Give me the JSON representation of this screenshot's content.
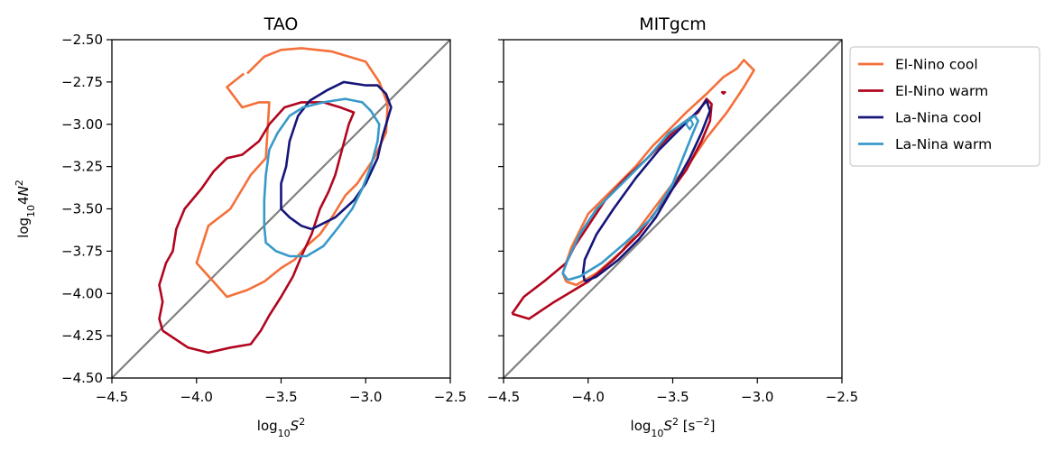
{
  "chart_data": [
    {
      "type": "line",
      "title": "TAO",
      "xlabel": "log10S2",
      "ylabel": "log10 4N2",
      "xlim": [
        -4.5,
        -2.5
      ],
      "ylim": [
        -4.5,
        -2.5
      ],
      "x_ticks": [
        -4.5,
        -4.0,
        -3.5,
        -3.0,
        -2.5
      ],
      "y_ticks": [
        -4.5,
        -4.25,
        -4.0,
        -3.75,
        -3.5,
        -3.25,
        -3.0,
        -2.75,
        -2.5
      ],
      "x_tick_labels": [
        "−4.5",
        "−4.0",
        "−3.5",
        "−3.0",
        "−2.5"
      ],
      "y_tick_labels": [
        "−4.50",
        "−4.25",
        "−4.00",
        "−3.75",
        "−3.50",
        "−3.25",
        "−3.00",
        "−2.75",
        "−2.50"
      ],
      "reference_line": {
        "color": "#808080",
        "points": [
          [
            -4.5,
            -4.5
          ],
          [
            -2.5,
            -2.5
          ]
        ]
      },
      "series": [
        {
          "name": "El-Nino cool",
          "color": "#f4703a",
          "points": [
            [
              -3.7,
              -2.7
            ],
            [
              -3.6,
              -2.6
            ],
            [
              -3.5,
              -2.56
            ],
            [
              -3.38,
              -2.55
            ],
            [
              -3.2,
              -2.57
            ],
            [
              -3.0,
              -2.63
            ],
            [
              -2.92,
              -2.75
            ],
            [
              -2.87,
              -2.88
            ],
            [
              -2.88,
              -3.05
            ],
            [
              -2.95,
              -3.2
            ],
            [
              -3.05,
              -3.35
            ],
            [
              -3.12,
              -3.42
            ],
            [
              -3.2,
              -3.55
            ],
            [
              -3.27,
              -3.65
            ],
            [
              -3.35,
              -3.72
            ],
            [
              -3.42,
              -3.8
            ],
            [
              -3.5,
              -3.85
            ],
            [
              -3.6,
              -3.93
            ],
            [
              -3.7,
              -3.98
            ],
            [
              -3.82,
              -4.02
            ],
            [
              -3.9,
              -3.93
            ],
            [
              -4.0,
              -3.82
            ],
            [
              -3.93,
              -3.6
            ],
            [
              -3.8,
              -3.5
            ],
            [
              -3.68,
              -3.3
            ],
            [
              -3.59,
              -3.2
            ],
            [
              -3.57,
              -2.87
            ],
            [
              -3.63,
              -2.87
            ],
            [
              -3.73,
              -2.9
            ],
            [
              -3.82,
              -2.78
            ],
            [
              -3.72,
              -2.7
            ]
          ]
        },
        {
          "name": "El-Nino warm",
          "color": "#b0061f",
          "points": [
            [
              -4.2,
              -4.22
            ],
            [
              -4.05,
              -4.32
            ],
            [
              -3.93,
              -4.35
            ],
            [
              -3.8,
              -4.32
            ],
            [
              -3.68,
              -4.3
            ],
            [
              -3.62,
              -4.22
            ],
            [
              -3.57,
              -4.13
            ],
            [
              -3.5,
              -4.02
            ],
            [
              -3.43,
              -3.9
            ],
            [
              -3.38,
              -3.78
            ],
            [
              -3.32,
              -3.65
            ],
            [
              -3.27,
              -3.5
            ],
            [
              -3.22,
              -3.4
            ],
            [
              -3.18,
              -3.3
            ],
            [
              -3.14,
              -3.15
            ],
            [
              -3.1,
              -3.0
            ],
            [
              -3.07,
              -2.93
            ],
            [
              -3.15,
              -2.9
            ],
            [
              -3.25,
              -2.87
            ],
            [
              -3.38,
              -2.87
            ],
            [
              -3.48,
              -2.9
            ],
            [
              -3.57,
              -3.0
            ],
            [
              -3.63,
              -3.1
            ],
            [
              -3.73,
              -3.18
            ],
            [
              -3.82,
              -3.2
            ],
            [
              -3.9,
              -3.28
            ],
            [
              -3.97,
              -3.38
            ],
            [
              -4.07,
              -3.5
            ],
            [
              -4.12,
              -3.62
            ],
            [
              -4.14,
              -3.75
            ],
            [
              -4.18,
              -3.82
            ],
            [
              -4.22,
              -3.95
            ],
            [
              -4.2,
              -4.05
            ],
            [
              -4.22,
              -4.15
            ],
            [
              -4.2,
              -4.22
            ]
          ]
        },
        {
          "name": "La-Nina cool",
          "color": "#15157a",
          "points": [
            [
              -3.32,
              -3.62
            ],
            [
              -3.18,
              -3.55
            ],
            [
              -3.07,
              -3.45
            ],
            [
              -3.0,
              -3.35
            ],
            [
              -2.93,
              -3.2
            ],
            [
              -2.9,
              -3.07
            ],
            [
              -2.85,
              -2.9
            ],
            [
              -2.88,
              -2.82
            ],
            [
              -2.93,
              -2.77
            ],
            [
              -3.0,
              -2.77
            ],
            [
              -3.13,
              -2.75
            ],
            [
              -3.23,
              -2.8
            ],
            [
              -3.33,
              -2.86
            ],
            [
              -3.4,
              -2.95
            ],
            [
              -3.45,
              -3.1
            ],
            [
              -3.47,
              -3.25
            ],
            [
              -3.5,
              -3.35
            ],
            [
              -3.5,
              -3.5
            ],
            [
              -3.45,
              -3.55
            ],
            [
              -3.38,
              -3.6
            ],
            [
              -3.32,
              -3.62
            ]
          ]
        },
        {
          "name": "La-Nina warm",
          "color": "#3899c9",
          "points": [
            [
              -3.45,
              -3.78
            ],
            [
              -3.35,
              -3.78
            ],
            [
              -3.25,
              -3.72
            ],
            [
              -3.17,
              -3.62
            ],
            [
              -3.08,
              -3.5
            ],
            [
              -3.02,
              -3.38
            ],
            [
              -2.97,
              -3.25
            ],
            [
              -2.93,
              -3.1
            ],
            [
              -2.92,
              -3.0
            ],
            [
              -2.97,
              -2.92
            ],
            [
              -3.02,
              -2.87
            ],
            [
              -3.12,
              -2.85
            ],
            [
              -3.25,
              -2.87
            ],
            [
              -3.37,
              -2.9
            ],
            [
              -3.45,
              -2.95
            ],
            [
              -3.52,
              -3.05
            ],
            [
              -3.57,
              -3.15
            ],
            [
              -3.59,
              -3.3
            ],
            [
              -3.6,
              -3.45
            ],
            [
              -3.6,
              -3.6
            ],
            [
              -3.59,
              -3.7
            ],
            [
              -3.53,
              -3.75
            ],
            [
              -3.45,
              -3.78
            ]
          ]
        }
      ]
    },
    {
      "type": "line",
      "title": "MITgcm",
      "xlabel": "log10S2 [s−2]",
      "ylabel": "",
      "xlim": [
        -4.5,
        -2.5
      ],
      "ylim": [
        -4.5,
        -2.5
      ],
      "x_ticks": [
        -4.5,
        -4.0,
        -3.5,
        -3.0,
        -2.5
      ],
      "y_ticks": [
        -4.5,
        -4.25,
        -4.0,
        -3.75,
        -3.5,
        -3.25,
        -3.0,
        -2.75,
        -2.5
      ],
      "x_tick_labels": [
        "−4.5",
        "−4.0",
        "−3.5",
        "−3.0",
        "−2.5"
      ],
      "y_tick_labels": [],
      "reference_line": {
        "color": "#808080",
        "points": [
          [
            -4.5,
            -4.5
          ],
          [
            -2.5,
            -2.5
          ]
        ]
      },
      "series": [
        {
          "name": "El-Nino cool",
          "color": "#f4703a",
          "points": [
            [
              -4.13,
              -3.93
            ],
            [
              -4.07,
              -3.95
            ],
            [
              -3.95,
              -3.88
            ],
            [
              -3.8,
              -3.75
            ],
            [
              -3.65,
              -3.55
            ],
            [
              -3.5,
              -3.35
            ],
            [
              -3.4,
              -3.23
            ],
            [
              -3.3,
              -3.08
            ],
            [
              -3.18,
              -2.93
            ],
            [
              -3.08,
              -2.78
            ],
            [
              -3.02,
              -2.68
            ],
            [
              -3.08,
              -2.62
            ],
            [
              -3.12,
              -2.67
            ],
            [
              -3.2,
              -2.72
            ],
            [
              -3.3,
              -2.82
            ],
            [
              -3.42,
              -2.93
            ],
            [
              -3.52,
              -3.03
            ],
            [
              -3.62,
              -3.13
            ],
            [
              -3.72,
              -3.25
            ],
            [
              -3.85,
              -3.38
            ],
            [
              -4.0,
              -3.53
            ],
            [
              -4.1,
              -3.73
            ],
            [
              -4.15,
              -3.88
            ],
            [
              -4.13,
              -3.93
            ]
          ]
        },
        {
          "name": "El-Nino warm",
          "color": "#b0061f",
          "points": [
            [
              -4.45,
              -4.12
            ],
            [
              -4.35,
              -4.15
            ],
            [
              -4.2,
              -4.05
            ],
            [
              -4.0,
              -3.93
            ],
            [
              -3.85,
              -3.8
            ],
            [
              -3.7,
              -3.65
            ],
            [
              -3.55,
              -3.45
            ],
            [
              -3.42,
              -3.27
            ],
            [
              -3.33,
              -3.1
            ],
            [
              -3.28,
              -2.98
            ],
            [
              -3.27,
              -2.88
            ],
            [
              -3.3,
              -2.85
            ],
            [
              -3.35,
              -2.93
            ],
            [
              -3.45,
              -3.0
            ],
            [
              -3.55,
              -3.1
            ],
            [
              -3.65,
              -3.2
            ],
            [
              -3.78,
              -3.32
            ],
            [
              -3.9,
              -3.45
            ],
            [
              -4.0,
              -3.6
            ],
            [
              -4.08,
              -3.72
            ],
            [
              -4.13,
              -3.82
            ],
            [
              -4.25,
              -3.92
            ],
            [
              -4.38,
              -4.02
            ],
            [
              -4.45,
              -4.12
            ]
          ],
          "extra_contours": [
            [
              [
                -3.2,
                -2.81
              ],
              [
                -3.19,
                -2.81
              ],
              [
                -3.2,
                -2.82
              ],
              [
                -3.21,
                -2.81
              ],
              [
                -3.2,
                -2.81
              ]
            ]
          ]
        },
        {
          "name": "La-Nina cool",
          "color": "#15157a",
          "points": [
            [
              -4.02,
              -3.93
            ],
            [
              -3.95,
              -3.9
            ],
            [
              -3.82,
              -3.8
            ],
            [
              -3.7,
              -3.68
            ],
            [
              -3.6,
              -3.55
            ],
            [
              -3.5,
              -3.38
            ],
            [
              -3.4,
              -3.2
            ],
            [
              -3.33,
              -3.05
            ],
            [
              -3.28,
              -2.92
            ],
            [
              -3.3,
              -2.86
            ],
            [
              -3.35,
              -2.92
            ],
            [
              -3.45,
              -3.02
            ],
            [
              -3.58,
              -3.15
            ],
            [
              -3.72,
              -3.32
            ],
            [
              -3.85,
              -3.5
            ],
            [
              -3.95,
              -3.65
            ],
            [
              -4.02,
              -3.8
            ],
            [
              -4.03,
              -3.88
            ],
            [
              -4.02,
              -3.93
            ]
          ]
        },
        {
          "name": "La-Nina warm",
          "color": "#3899c9",
          "points": [
            [
              -4.12,
              -3.92
            ],
            [
              -4.05,
              -3.9
            ],
            [
              -3.92,
              -3.82
            ],
            [
              -3.78,
              -3.7
            ],
            [
              -3.62,
              -3.55
            ],
            [
              -3.5,
              -3.35
            ],
            [
              -3.42,
              -3.15
            ],
            [
              -3.38,
              -3.05
            ],
            [
              -3.35,
              -2.98
            ],
            [
              -3.37,
              -2.95
            ],
            [
              -3.42,
              -2.98
            ],
            [
              -3.52,
              -3.05
            ],
            [
              -3.65,
              -3.2
            ],
            [
              -3.8,
              -3.35
            ],
            [
              -3.95,
              -3.5
            ],
            [
              -4.05,
              -3.65
            ],
            [
              -4.12,
              -3.8
            ],
            [
              -4.15,
              -3.88
            ],
            [
              -4.12,
              -3.92
            ]
          ],
          "extra_contours": [
            [
              [
                -3.42,
                -3.0
              ],
              [
                -3.4,
                -2.96
              ],
              [
                -3.38,
                -3.0
              ],
              [
                -3.4,
                -3.03
              ],
              [
                -3.42,
                -3.0
              ]
            ]
          ]
        }
      ]
    }
  ],
  "legend": {
    "placement": "outside-right",
    "entries": [
      {
        "label": "El-Nino cool",
        "color": "#f4703a"
      },
      {
        "label": "El-Nino warm",
        "color": "#b0061f"
      },
      {
        "label": "La-Nina cool",
        "color": "#15157a"
      },
      {
        "label": "La-Nina warm",
        "color": "#3899c9"
      }
    ]
  }
}
